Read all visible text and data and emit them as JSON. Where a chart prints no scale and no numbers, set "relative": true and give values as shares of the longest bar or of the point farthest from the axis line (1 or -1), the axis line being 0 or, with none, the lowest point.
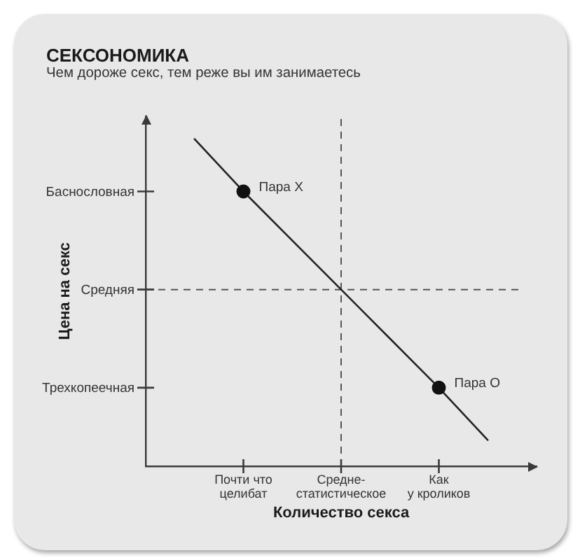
{
  "chart_data": {
    "type": "line",
    "title": "СЕКСОНОМИКА",
    "subtitle": "Чем дороже секс, тем реже вы им занимаетесь",
    "xlabel": "Количество секса",
    "ylabel": "Цена на секс",
    "categories": [
      null,
      "Почти что\nцелибат",
      null,
      "Средне-\nстатистическое",
      null,
      "Как\nу кроликов",
      null
    ],
    "relative": true,
    "series": [
      {
        "color": "#222222",
        "marker": "none",
        "values": [
          1,
          0.84,
          0.69,
          0.54,
          0.39,
          0.24,
          0.08
        ]
      },
      {
        "type": "scatter",
        "name": "Пара X",
        "color": "#111111",
        "marker": "circle",
        "values": [
          null,
          0.84,
          null,
          null,
          null,
          null,
          null
        ]
      },
      {
        "type": "scatter",
        "name": "Пара O",
        "color": "#111111",
        "marker": "circle",
        "values": [
          null,
          null,
          null,
          null,
          null,
          0.24,
          null
        ]
      }
    ],
    "annotations": [
      "Баснословная",
      "Трехкопеечная"
    ],
    "ref_lines": [
      {
        "axis": "x",
        "value": "Средне-\nстатистическое",
        "line_style": "dashed",
        "color": "#555555"
      },
      {
        "axis": "y",
        "value": 0.54,
        "label": "Средняя",
        "line_style": "dashed",
        "color": "#555555"
      }
    ],
    "grid": false,
    "legend": false
  }
}
